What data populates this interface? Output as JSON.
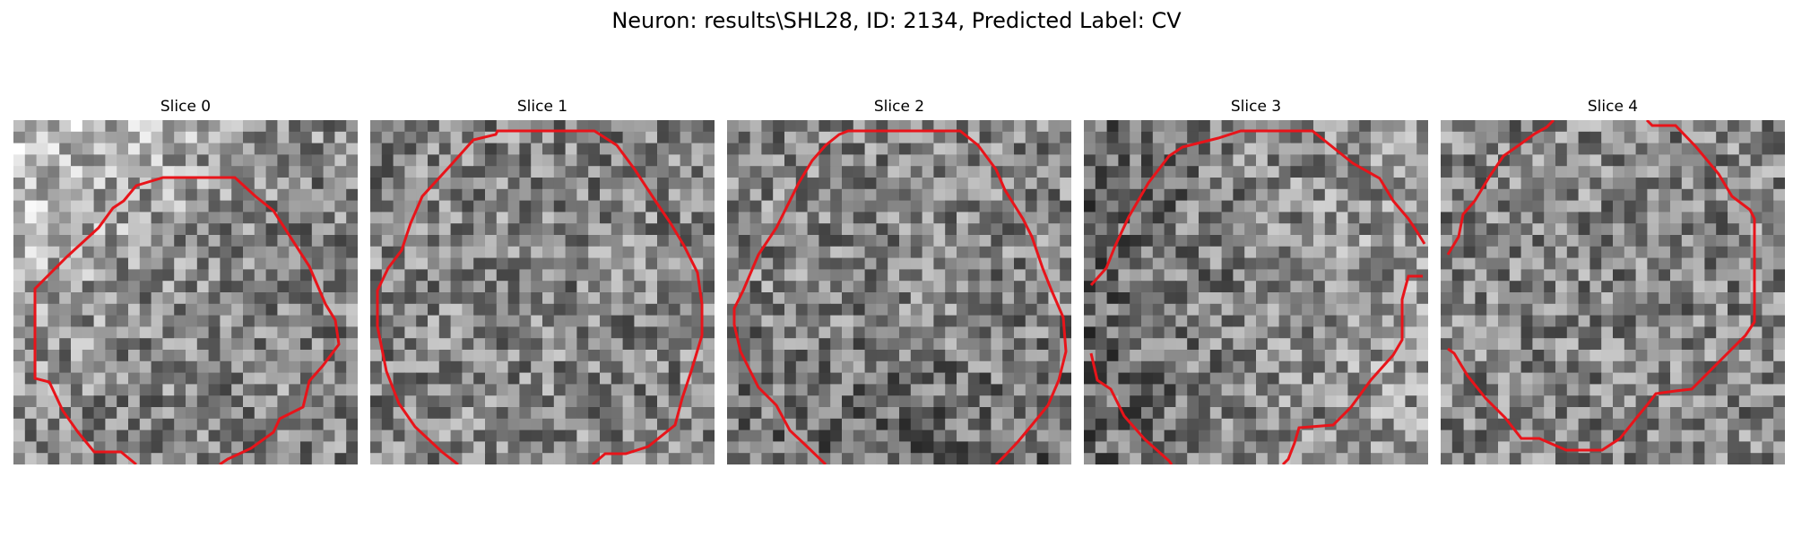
{
  "figure": {
    "title": "Neuron: results\\SHL28, ID: 2134, Predicted Label: CV"
  },
  "slices": [
    {
      "label": "Slice 0"
    },
    {
      "label": "Slice 1"
    },
    {
      "label": "Slice 2"
    },
    {
      "label": "Slice 3"
    },
    {
      "label": "Slice 4"
    }
  ],
  "colors": {
    "contour": "#e8141a",
    "background": "#ffffff"
  }
}
